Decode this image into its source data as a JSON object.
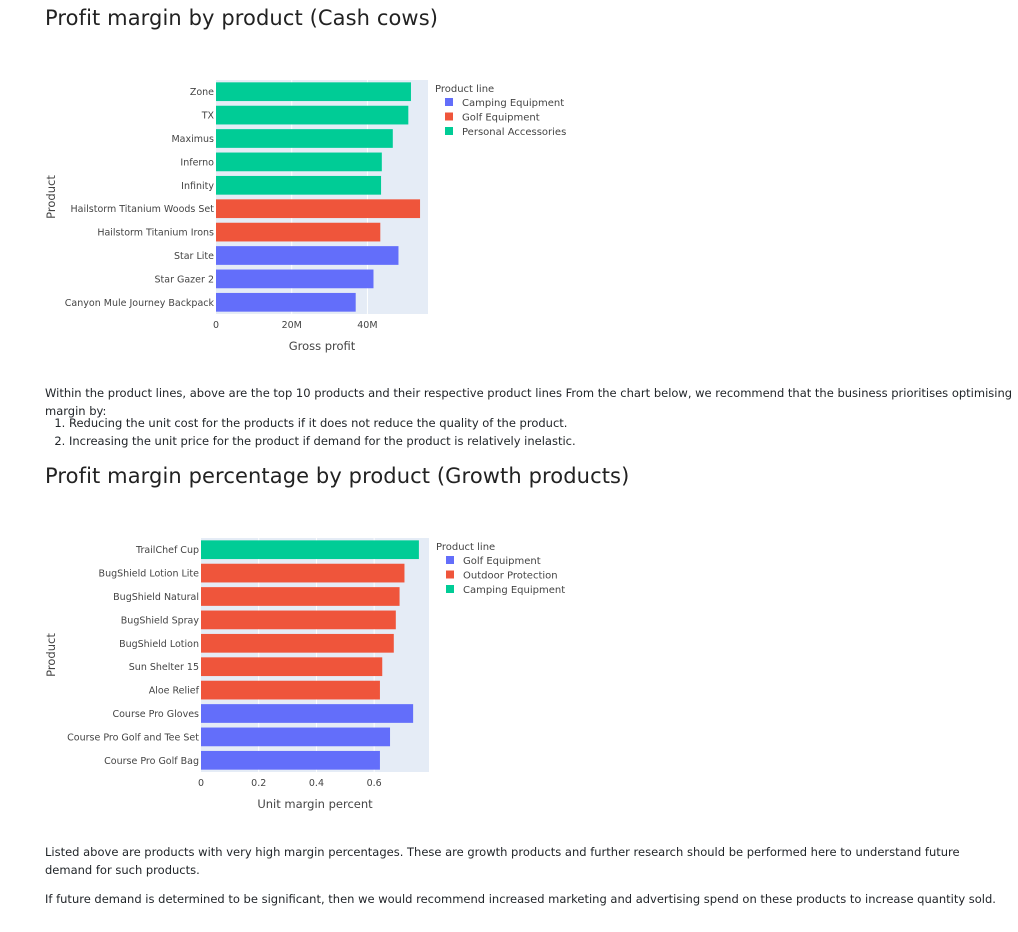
{
  "section1": {
    "title": "Profit margin by product (Cash cows)",
    "description": "Within the product lines, above are the top 10 products and their respective product lines From the chart below, we recommend that the business prioritises optimising margin by:",
    "list": [
      "Reducing the unit cost for the products if it does not reduce the quality of the product.",
      "Increasing the unit price for the product if demand for the product is relatively inelastic."
    ]
  },
  "section2": {
    "title": "Profit margin percentage by product (Growth products)",
    "paragraph1": "Listed above are products with very high margin percentages. These are growth products and further research should be performed here to understand future demand for such products.",
    "paragraph2": "If future demand is determined to be significant, then we would recommend increased marketing and advertising spend on these products to increase quantity sold."
  },
  "chart_data": [
    {
      "type": "bar",
      "orientation": "horizontal",
      "xlabel": "Gross profit",
      "ylabel": "Product",
      "xlim": [
        0,
        56000000
      ],
      "xticks": [
        0,
        20000000,
        40000000
      ],
      "xtick_labels": [
        "0",
        "20M",
        "40M"
      ],
      "legend_title": "Product line",
      "legend": [
        {
          "name": "Camping Equipment",
          "color": "#636efa"
        },
        {
          "name": "Golf Equipment",
          "color": "#ef553b"
        },
        {
          "name": "Personal Accessories",
          "color": "#00cc96"
        }
      ],
      "bars": [
        {
          "category": "Zone",
          "value": 51500000,
          "series": "Personal Accessories"
        },
        {
          "category": "TX",
          "value": 50800000,
          "series": "Personal Accessories"
        },
        {
          "category": "Maximus",
          "value": 46700000,
          "series": "Personal Accessories"
        },
        {
          "category": "Inferno",
          "value": 43800000,
          "series": "Personal Accessories"
        },
        {
          "category": "Infinity",
          "value": 43600000,
          "series": "Personal Accessories"
        },
        {
          "category": "Hailstorm Titanium Woods Set",
          "value": 53900000,
          "series": "Golf Equipment"
        },
        {
          "category": "Hailstorm Titanium Irons",
          "value": 43400000,
          "series": "Golf Equipment"
        },
        {
          "category": "Star Lite",
          "value": 48200000,
          "series": "Camping Equipment"
        },
        {
          "category": "Star Gazer 2",
          "value": 41600000,
          "series": "Camping Equipment"
        },
        {
          "category": "Canyon Mule Journey Backpack",
          "value": 36900000,
          "series": "Camping Equipment"
        }
      ]
    },
    {
      "type": "bar",
      "orientation": "horizontal",
      "xlabel": "Unit margin percent",
      "ylabel": "Product",
      "xlim": [
        0,
        0.79
      ],
      "xticks": [
        0,
        0.2,
        0.4,
        0.6
      ],
      "xtick_labels": [
        "0",
        "0.2",
        "0.4",
        "0.6"
      ],
      "legend_title": "Product line",
      "legend": [
        {
          "name": "Golf Equipment",
          "color": "#636efa"
        },
        {
          "name": "Outdoor Protection",
          "color": "#ef553b"
        },
        {
          "name": "Camping Equipment",
          "color": "#00cc96"
        }
      ],
      "bars": [
        {
          "category": "TrailChef Cup",
          "value": 0.755,
          "series": "Camping Equipment"
        },
        {
          "category": "BugShield Lotion Lite",
          "value": 0.705,
          "series": "Outdoor Protection"
        },
        {
          "category": "BugShield Natural",
          "value": 0.688,
          "series": "Outdoor Protection"
        },
        {
          "category": "BugShield Spray",
          "value": 0.675,
          "series": "Outdoor Protection"
        },
        {
          "category": "BugShield Lotion",
          "value": 0.668,
          "series": "Outdoor Protection"
        },
        {
          "category": "Sun Shelter 15",
          "value": 0.628,
          "series": "Outdoor Protection"
        },
        {
          "category": "Aloe Relief",
          "value": 0.62,
          "series": "Outdoor Protection"
        },
        {
          "category": "Course Pro Gloves",
          "value": 0.735,
          "series": "Golf Equipment"
        },
        {
          "category": "Course Pro Golf and Tee Set",
          "value": 0.655,
          "series": "Golf Equipment"
        },
        {
          "category": "Course Pro Golf Bag",
          "value": 0.62,
          "series": "Golf Equipment"
        }
      ]
    }
  ]
}
